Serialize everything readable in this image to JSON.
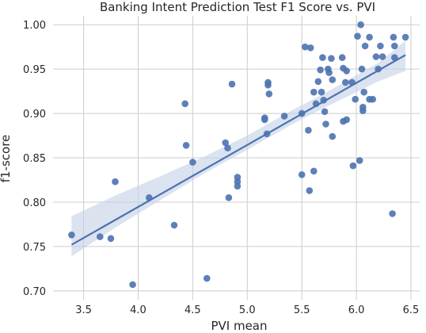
{
  "chart_data": {
    "type": "scatter",
    "title": "Banking Intent Prediction Test F1 Score vs. PVI",
    "xlabel": "PVI mean",
    "ylabel": "f1-score",
    "xlim": [
      3.22,
      6.58
    ],
    "ylim": [
      0.69,
      1.01
    ],
    "xticks": [
      3.5,
      4.0,
      4.5,
      5.0,
      5.5,
      6.0,
      6.5
    ],
    "xtick_labels": [
      "3.5",
      "4.0",
      "4.5",
      "5.0",
      "5.5",
      "6.0",
      "6.5"
    ],
    "yticks": [
      0.7,
      0.75,
      0.8,
      0.85,
      0.9,
      0.95,
      1.0
    ],
    "ytick_labels": [
      "0.70",
      "0.75",
      "0.80",
      "0.85",
      "0.90",
      "0.95",
      "1.00"
    ],
    "grid": true,
    "colors": {
      "points": "#4c72b0",
      "line": "#4c72b0",
      "band": "#c3d0e6"
    },
    "points": [
      [
        3.39,
        0.763
      ],
      [
        3.65,
        0.761
      ],
      [
        3.75,
        0.759
      ],
      [
        3.79,
        0.823
      ],
      [
        3.95,
        0.707
      ],
      [
        4.1,
        0.805
      ],
      [
        4.33,
        0.774
      ],
      [
        4.43,
        0.911
      ],
      [
        4.44,
        0.864
      ],
      [
        4.5,
        0.845
      ],
      [
        4.63,
        0.714
      ],
      [
        4.8,
        0.867
      ],
      [
        4.82,
        0.861
      ],
      [
        4.83,
        0.805
      ],
      [
        4.86,
        0.933
      ],
      [
        4.91,
        0.828
      ],
      [
        4.91,
        0.823
      ],
      [
        4.91,
        0.818
      ],
      [
        5.16,
        0.893
      ],
      [
        5.16,
        0.895
      ],
      [
        5.18,
        0.877
      ],
      [
        5.19,
        0.935
      ],
      [
        5.19,
        0.932
      ],
      [
        5.2,
        0.922
      ],
      [
        5.34,
        0.897
      ],
      [
        5.5,
        0.831
      ],
      [
        5.5,
        0.9
      ],
      [
        5.53,
        0.975
      ],
      [
        5.56,
        0.881
      ],
      [
        5.57,
        0.813
      ],
      [
        5.58,
        0.974
      ],
      [
        5.61,
        0.835
      ],
      [
        5.61,
        0.924
      ],
      [
        5.63,
        0.911
      ],
      [
        5.65,
        0.936
      ],
      [
        5.67,
        0.949
      ],
      [
        5.68,
        0.924
      ],
      [
        5.69,
        0.963
      ],
      [
        5.7,
        0.915
      ],
      [
        5.71,
        0.902
      ],
      [
        5.72,
        0.888
      ],
      [
        5.74,
        0.95
      ],
      [
        5.75,
        0.946
      ],
      [
        5.77,
        0.962
      ],
      [
        5.78,
        0.874
      ],
      [
        5.78,
        0.938
      ],
      [
        5.87,
        0.963
      ],
      [
        5.88,
        0.951
      ],
      [
        5.88,
        0.891
      ],
      [
        5.9,
        0.935
      ],
      [
        5.91,
        0.948
      ],
      [
        5.91,
        0.893
      ],
      [
        5.96,
        0.935
      ],
      [
        5.97,
        0.841
      ],
      [
        5.99,
        0.916
      ],
      [
        6.01,
        0.987
      ],
      [
        6.03,
        0.847
      ],
      [
        6.04,
        1.0
      ],
      [
        6.05,
        0.95
      ],
      [
        6.06,
        0.903
      ],
      [
        6.06,
        0.907
      ],
      [
        6.07,
        0.924
      ],
      [
        6.08,
        0.976
      ],
      [
        6.12,
        0.916
      ],
      [
        6.12,
        0.986
      ],
      [
        6.15,
        0.916
      ],
      [
        6.18,
        0.964
      ],
      [
        6.2,
        0.95
      ],
      [
        6.22,
        0.976
      ],
      [
        6.24,
        0.964
      ],
      [
        6.33,
        0.787
      ],
      [
        6.34,
        0.986
      ],
      [
        6.35,
        0.976
      ],
      [
        6.35,
        0.963
      ],
      [
        6.45,
        0.986
      ]
    ],
    "regression": {
      "x_range": [
        3.39,
        6.45
      ],
      "slope": 0.0699,
      "intercept": 0.515
    },
    "confidence_band": {
      "x": [
        3.39,
        3.8,
        4.2,
        4.6,
        5.0,
        5.4,
        5.7,
        6.0,
        6.2,
        6.45
      ],
      "lower": [
        0.739,
        0.772,
        0.802,
        0.832,
        0.859,
        0.887,
        0.906,
        0.924,
        0.936,
        0.948
      ],
      "upper": [
        0.784,
        0.808,
        0.829,
        0.851,
        0.875,
        0.903,
        0.922,
        0.943,
        0.957,
        0.982
      ]
    }
  }
}
